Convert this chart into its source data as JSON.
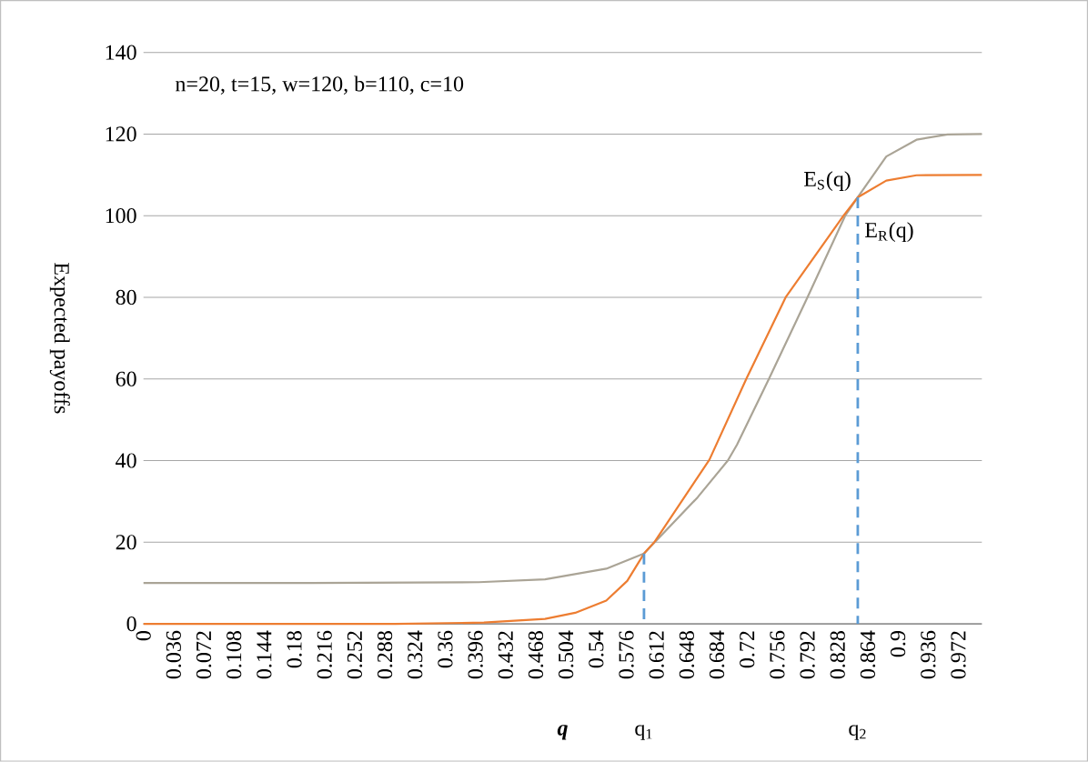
{
  "chart_data": {
    "type": "line",
    "xlabel": "q",
    "ylabel": "Expected payoffs",
    "annotations": [
      "n=20, t=15, w=120, b=110, c=10",
      "q$_{1}$",
      "q$_{2}$"
    ],
    "xlim": [
      0,
      1
    ],
    "ylim": [
      0,
      140
    ],
    "xticks": [
      0,
      0.036,
      0.072,
      0.108,
      0.144,
      0.18,
      0.216,
      0.252,
      0.288,
      0.324,
      0.36,
      0.396,
      0.432,
      0.468,
      0.504,
      0.54,
      0.576,
      0.612,
      0.648,
      0.684,
      0.72,
      0.756,
      0.792,
      0.828,
      0.864,
      0.9,
      0.936,
      0.972
    ],
    "yticks": [
      0,
      20,
      40,
      60,
      80,
      100,
      120,
      140
    ],
    "grid": "y",
    "series": [
      {
        "name": "E$_{S}$(q)",
        "color": "#aaa496",
        "x": [
          0,
          0.2,
          0.4,
          0.479,
          0.552,
          0.597,
          0.661,
          0.697,
          0.708,
          0.746,
          0.792,
          0.837,
          0.852,
          0.886,
          0.922,
          0.959,
          1
        ],
        "values": [
          10,
          10,
          10.2,
          10.9,
          13.5,
          17.2,
          31,
          40,
          43.9,
          60,
          80,
          100,
          104.5,
          114.5,
          118.6,
          119.9,
          120
        ]
      },
      {
        "name": "E$_{R}$(q)",
        "color": "#ed7d31",
        "x": [
          0,
          0.3,
          0.406,
          0.479,
          0.515,
          0.552,
          0.577,
          0.597,
          0.61,
          0.675,
          0.719,
          0.766,
          0.835,
          0.852,
          0.886,
          0.922,
          1
        ],
        "values": [
          0,
          0,
          0.3,
          1.2,
          2.7,
          5.7,
          10.5,
          17.2,
          20.2,
          40.2,
          60,
          80,
          100,
          104.5,
          108.6,
          109.9,
          110
        ]
      },
      {
        "color": "#5b9bd5",
        "line_style": "dashed",
        "x": [
          0.597,
          0.597
        ],
        "values": [
          17.2,
          0
        ]
      },
      {
        "color": "#5b9bd5",
        "line_style": "dashed",
        "x": [
          0.852,
          0.852
        ],
        "values": [
          104.5,
          0
        ]
      }
    ]
  }
}
